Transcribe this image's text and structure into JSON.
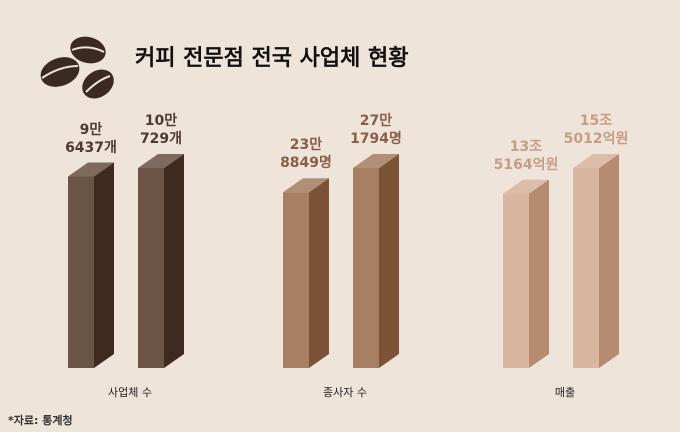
{
  "title": "커피 전문점 전국 사업체 현황",
  "source": "*자료: 통계청",
  "chart_data": [
    {
      "type": "bar",
      "xlabel": "사업체 수",
      "values": [
        96437,
        100729
      ],
      "value_labels": [
        "9만\n6437개",
        "10만\n729개"
      ],
      "color": "#6b5446",
      "shade_color": "#3e2a1e",
      "label_color": "#4d3b30"
    },
    {
      "type": "bar",
      "xlabel": "종사자 수",
      "values": [
        238849,
        271794
      ],
      "value_labels": [
        "23만\n8849명",
        "27만\n1794명"
      ],
      "color": "#a87f64",
      "shade_color": "#7d5338",
      "label_color": "#8a5e44"
    },
    {
      "type": "bar",
      "xlabel": "매출",
      "values": [
        135164,
        155012
      ],
      "value_labels": [
        "13조\n5164억원",
        "15조\n5012억원"
      ],
      "color": "#d9b6a0",
      "shade_color": "#b58c72",
      "label_color": "#c79d84"
    }
  ]
}
